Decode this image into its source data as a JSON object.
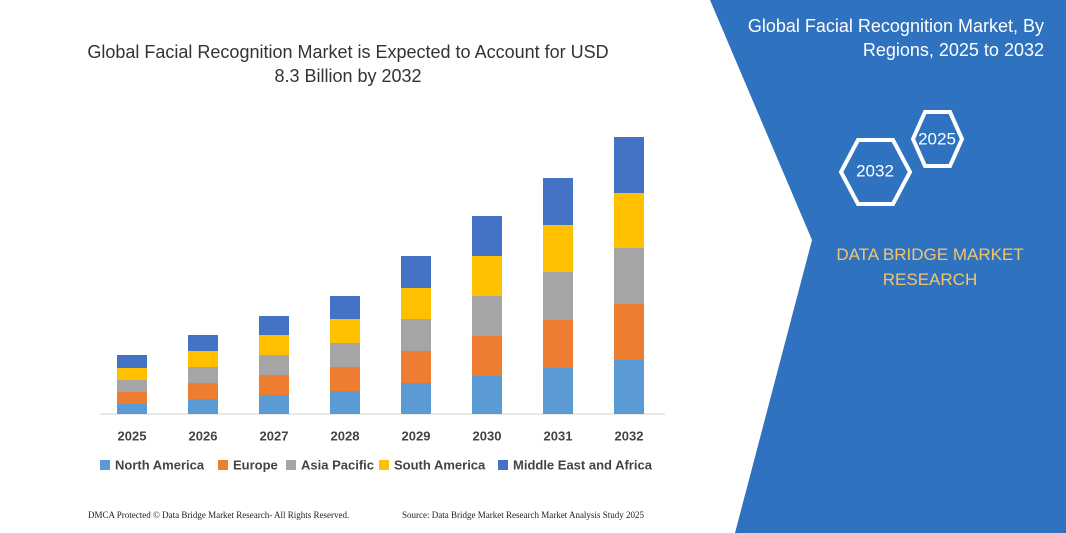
{
  "chart_data": {
    "type": "bar",
    "stacked": true,
    "title": "Global Facial Recognition Market is Expected to Account for USD 8.3  Billion by 2032",
    "categories": [
      "2025",
      "2026",
      "2027",
      "2028",
      "2029",
      "2030",
      "2031",
      "2032"
    ],
    "series": [
      {
        "name": "North America",
        "color": "#5b9bd5",
        "values": [
          10,
          15,
          19,
          23,
          31,
          38,
          46,
          54
        ]
      },
      {
        "name": "Europe",
        "color": "#ed7d31",
        "values": [
          12,
          16,
          20,
          24,
          32,
          40,
          48,
          56
        ]
      },
      {
        "name": "Asia Pacific",
        "color": "#a5a5a5",
        "values": [
          12,
          16,
          20,
          24,
          32,
          40,
          48,
          56
        ]
      },
      {
        "name": "South America",
        "color": "#ffc000",
        "values": [
          12,
          16,
          20,
          24,
          31,
          40,
          47,
          55
        ]
      },
      {
        "name": "Middle East and Africa",
        "color": "#4472c4",
        "values": [
          13,
          16,
          19,
          23,
          32,
          40,
          47,
          56
        ]
      }
    ]
  },
  "panel": {
    "title": "Global Facial Recognition Market, By Regions, 2025 to 2032",
    "hex_small": "2025",
    "hex_large": "2032",
    "brand": "DATA BRIDGE MARKET RESEARCH"
  },
  "footer": {
    "left": "DMCA Protected © Data Bridge Market Research- All Rights Reserved.",
    "right": "Source: Data Bridge Market Research Market Analysis Study 2025"
  }
}
